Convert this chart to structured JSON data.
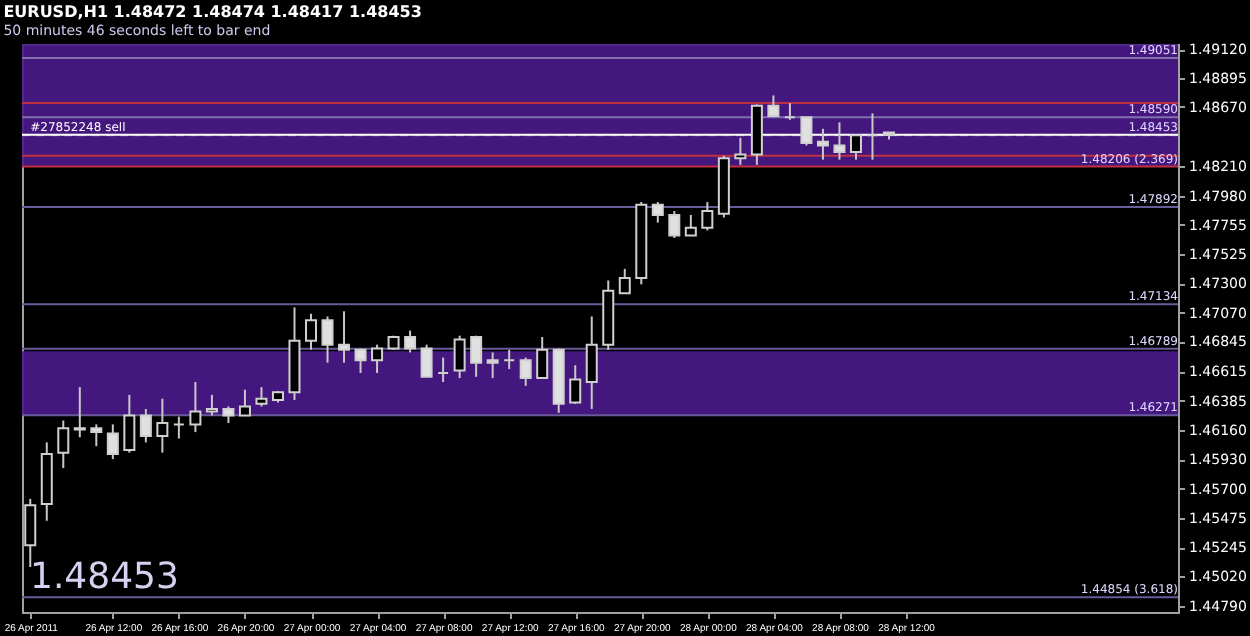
{
  "chart_data": {
    "type": "candlestick",
    "title": "EURUSD,H1  1.48472 1.48474 1.48417 1.48453",
    "subtitle": "50 minutes 46 seconds left to bar end",
    "x": [
      "2011-04-26T07:00",
      "2011-04-26T08:00",
      "2011-04-26T09:00",
      "2011-04-26T10:00",
      "2011-04-26T11:00",
      "2011-04-26T12:00",
      "2011-04-26T13:00",
      "2011-04-26T14:00",
      "2011-04-26T15:00",
      "2011-04-26T16:00",
      "2011-04-26T17:00",
      "2011-04-26T18:00",
      "2011-04-26T19:00",
      "2011-04-26T20:00",
      "2011-04-26T21:00",
      "2011-04-26T22:00",
      "2011-04-26T23:00",
      "2011-04-27T00:00",
      "2011-04-27T01:00",
      "2011-04-27T02:00",
      "2011-04-27T03:00",
      "2011-04-27T04:00",
      "2011-04-27T05:00",
      "2011-04-27T06:00",
      "2011-04-27T07:00",
      "2011-04-27T08:00",
      "2011-04-27T09:00",
      "2011-04-27T10:00",
      "2011-04-27T11:00",
      "2011-04-27T12:00",
      "2011-04-27T13:00",
      "2011-04-27T14:00",
      "2011-04-27T15:00",
      "2011-04-27T16:00",
      "2011-04-27T17:00",
      "2011-04-27T18:00",
      "2011-04-27T19:00",
      "2011-04-27T20:00",
      "2011-04-27T21:00",
      "2011-04-27T22:00",
      "2011-04-27T23:00",
      "2011-04-28T00:00",
      "2011-04-28T01:00",
      "2011-04-28T02:00",
      "2011-04-28T03:00",
      "2011-04-28T04:00",
      "2011-04-28T05:00",
      "2011-04-28T06:00",
      "2011-04-28T07:00",
      "2011-04-28T08:00",
      "2011-04-28T09:00",
      "2011-04-28T10:00",
      "2011-04-28T11:00"
    ],
    "ohlc": [
      [
        1.4526,
        1.4562,
        1.4509,
        1.4557
      ],
      [
        1.4558,
        1.4606,
        1.4545,
        1.4597
      ],
      [
        1.4598,
        1.4623,
        1.4586,
        1.4617
      ],
      [
        1.4616,
        1.4649,
        1.461,
        1.4617
      ],
      [
        1.4617,
        1.462,
        1.4603,
        1.4614
      ],
      [
        1.4613,
        1.462,
        1.4593,
        1.4597
      ],
      [
        1.46,
        1.4643,
        1.4598,
        1.4627
      ],
      [
        1.4627,
        1.4632,
        1.4606,
        1.4611
      ],
      [
        1.4611,
        1.464,
        1.4598,
        1.4621
      ],
      [
        1.462,
        1.4626,
        1.4609,
        1.462
      ],
      [
        1.462,
        1.4653,
        1.4614,
        1.463
      ],
      [
        1.463,
        1.4643,
        1.4627,
        1.4632
      ],
      [
        1.4632,
        1.4634,
        1.4621,
        1.4627
      ],
      [
        1.4627,
        1.4647,
        1.4627,
        1.4634
      ],
      [
        1.4636,
        1.4649,
        1.4634,
        1.464
      ],
      [
        1.4639,
        1.4646,
        1.4637,
        1.4645
      ],
      [
        1.4645,
        1.4711,
        1.4639,
        1.4685
      ],
      [
        1.4685,
        1.4706,
        1.4678,
        1.4701
      ],
      [
        1.4701,
        1.4704,
        1.4668,
        1.4682
      ],
      [
        1.4682,
        1.4708,
        1.4668,
        1.4678
      ],
      [
        1.4678,
        1.4679,
        1.466,
        1.467
      ],
      [
        1.467,
        1.4682,
        1.466,
        1.4679
      ],
      [
        1.4679,
        1.4689,
        1.4678,
        1.4688
      ],
      [
        1.4688,
        1.4693,
        1.4676,
        1.4679
      ],
      [
        1.4679,
        1.4682,
        1.4657,
        1.4657
      ],
      [
        1.466,
        1.4672,
        1.4653,
        1.466
      ],
      [
        1.4662,
        1.4689,
        1.4656,
        1.4686
      ],
      [
        1.4688,
        1.4689,
        1.4657,
        1.4668
      ],
      [
        1.467,
        1.4676,
        1.4656,
        1.4668
      ],
      [
        1.467,
        1.4678,
        1.4663,
        1.467
      ],
      [
        1.467,
        1.4672,
        1.465,
        1.4656
      ],
      [
        1.4656,
        1.4688,
        1.4656,
        1.4678
      ],
      [
        1.4678,
        1.4679,
        1.4629,
        1.4636
      ],
      [
        1.4637,
        1.4666,
        1.4636,
        1.4655
      ],
      [
        1.4653,
        1.4704,
        1.4632,
        1.4682
      ],
      [
        1.4682,
        1.4732,
        1.4678,
        1.4724
      ],
      [
        1.4722,
        1.4741,
        1.4722,
        1.4734
      ],
      [
        1.4734,
        1.4793,
        1.4729,
        1.4791
      ],
      [
        1.4791,
        1.4793,
        1.4777,
        1.4783
      ],
      [
        1.4783,
        1.4786,
        1.4765,
        1.4767
      ],
      [
        1.4767,
        1.4783,
        1.4767,
        1.4773
      ],
      [
        1.4773,
        1.4793,
        1.4771,
        1.4786
      ],
      [
        1.4784,
        1.4829,
        1.4781,
        1.4827
      ],
      [
        1.4827,
        1.4843,
        1.4822,
        1.483
      ],
      [
        1.483,
        1.4869,
        1.4822,
        1.4868
      ],
      [
        1.4868,
        1.4876,
        1.4859,
        1.486
      ],
      [
        1.4859,
        1.487,
        1.4857,
        1.4859
      ],
      [
        1.4859,
        1.4859,
        1.4837,
        1.4839
      ],
      [
        1.484,
        1.485,
        1.4826,
        1.4837
      ],
      [
        1.4837,
        1.4855,
        1.4826,
        1.4832
      ],
      [
        1.4832,
        1.4846,
        1.4826,
        1.4845
      ],
      [
        1.4845,
        1.4862,
        1.4826,
        1.4845
      ],
      [
        1.48472,
        1.48474,
        1.48417,
        1.48453
      ]
    ],
    "colors": [
      "#000000",
      "#000000",
      "#000000",
      "#000000",
      "#e0e0e0",
      "#e0e0e0",
      "#000000",
      "#e0e0e0",
      "#000000",
      "#d0d0d0",
      "#000000",
      "#000000",
      "#e0e0e0",
      "#000000",
      "#000000",
      "#000000",
      "#000000",
      "#000000",
      "#e0e0e0",
      "#e0e0e0",
      "#e0e0e0",
      "#000000",
      "#000000",
      "#e0e0e0",
      "#e0e0e0",
      "#d0d0d0",
      "#000000",
      "#e0e0e0",
      "#e0e0e0",
      "#d0d0d0",
      "#e0e0e0",
      "#000000",
      "#e0e0e0",
      "#000000",
      "#000000",
      "#000000",
      "#000000",
      "#000000",
      "#e0e0e0",
      "#e0e0e0",
      "#000000",
      "#000000",
      "#000000",
      "#000000",
      "#000000",
      "#e0e0e0",
      "#d0d0d0",
      "#e0e0e0",
      "#e0e0e0",
      "#e0e0e0",
      "#000000",
      "#d0d0d0",
      "#e0e0e0"
    ],
    "xlim": [
      "2011-04-26T06:30",
      "2011-04-29T04:30"
    ],
    "xticks": [
      {
        "value": "2011-04-26T07:00",
        "label": "26 Apr 2011"
      },
      {
        "value": "2011-04-26T12:00",
        "label": "26 Apr 12:00"
      },
      {
        "value": "2011-04-26T16:00",
        "label": "26 Apr 16:00"
      },
      {
        "value": "2011-04-26T20:00",
        "label": "26 Apr 20:00"
      },
      {
        "value": "2011-04-27T00:00",
        "label": "27 Apr 00:00"
      },
      {
        "value": "2011-04-27T04:00",
        "label": "27 Apr 04:00"
      },
      {
        "value": "2011-04-27T08:00",
        "label": "27 Apr 08:00"
      },
      {
        "value": "2011-04-27T12:00",
        "label": "27 Apr 12:00"
      },
      {
        "value": "2011-04-27T16:00",
        "label": "27 Apr 16:00"
      },
      {
        "value": "2011-04-27T20:00",
        "label": "27 Apr 20:00"
      },
      {
        "value": "2011-04-28T00:00",
        "label": "28 Apr 00:00"
      },
      {
        "value": "2011-04-28T04:00",
        "label": "28 Apr 04:00"
      },
      {
        "value": "2011-04-28T08:00",
        "label": "28 Apr 08:00"
      },
      {
        "value": "2011-04-28T12:00",
        "label": "28 Apr 12:00"
      }
    ],
    "ylim": [
      1.4474,
      1.4916
    ],
    "yticks": [
      {
        "value": 1.4912,
        "label": "1.49120"
      },
      {
        "value": 1.48895,
        "label": "1.48895"
      },
      {
        "value": 1.4867,
        "label": "1.48670"
      },
      {
        "value": 1.4821,
        "label": "1.48210"
      },
      {
        "value": 1.4798,
        "label": "1.47980"
      },
      {
        "value": 1.47755,
        "label": "1.47755"
      },
      {
        "value": 1.47525,
        "label": "1.47525"
      },
      {
        "value": 1.473,
        "label": "1.47300"
      },
      {
        "value": 1.4707,
        "label": "1.47070"
      },
      {
        "value": 1.46845,
        "label": "1.46845"
      },
      {
        "value": 1.46615,
        "label": "1.46615"
      },
      {
        "value": 1.46385,
        "label": "1.46385"
      },
      {
        "value": 1.4616,
        "label": "1.46160"
      },
      {
        "value": 1.4593,
        "label": "1.45930"
      },
      {
        "value": 1.457,
        "label": "1.45700"
      },
      {
        "value": 1.45475,
        "label": "1.45475"
      },
      {
        "value": 1.45245,
        "label": "1.45245"
      },
      {
        "value": 1.4502,
        "label": "1.45020"
      },
      {
        "value": 1.4479,
        "label": "1.44790"
      }
    ],
    "bands": [
      {
        "axis": "y",
        "from": 1.4821,
        "to": 1.4916,
        "color": "#4b1a8c"
      },
      {
        "axis": "y",
        "from": 1.46271,
        "to": 1.4677,
        "color": "#4b1a8c"
      }
    ],
    "ref_lines": [
      {
        "axis": "y",
        "value": 1.49051,
        "label": "1.49051",
        "color": "#8070b0"
      },
      {
        "axis": "y",
        "value": 1.487,
        "label": null,
        "color": "#c03040"
      },
      {
        "axis": "y",
        "value": 1.4859,
        "label": "1.48590",
        "color": "#8070b0"
      },
      {
        "axis": "y",
        "value": 1.4845,
        "label": null,
        "color": "#8070b0",
        "line_style": "dashed"
      },
      {
        "axis": "y",
        "value": 1.48453,
        "label": "1.48453",
        "color": "#ffffff"
      },
      {
        "axis": "y",
        "value": 1.4829,
        "label": null,
        "color": "#c03040"
      },
      {
        "axis": "y",
        "value": 1.48206,
        "label": "1.48206  (2.369)",
        "color": "#c03040"
      },
      {
        "axis": "y",
        "value": 1.47892,
        "label": "1.47892",
        "color": "#6a5a9a"
      },
      {
        "axis": "y",
        "value": 1.47134,
        "label": "1.47134",
        "color": "#6a5a9a"
      },
      {
        "axis": "y",
        "value": 1.46789,
        "label": "1.46789",
        "color": "#6a5a9a"
      },
      {
        "axis": "y",
        "value": 1.46271,
        "label": "1.46271",
        "color": "#6a5a9a"
      },
      {
        "axis": "y",
        "value": 1.44854,
        "label": "1.44854  (3.618)",
        "color": "#6a5a9a"
      }
    ],
    "annotations": [
      "1.48453",
      {
        "text": "#27852248 sell",
        "x": "2011-04-26T07:00",
        "y": 1.4845
      }
    ]
  }
}
